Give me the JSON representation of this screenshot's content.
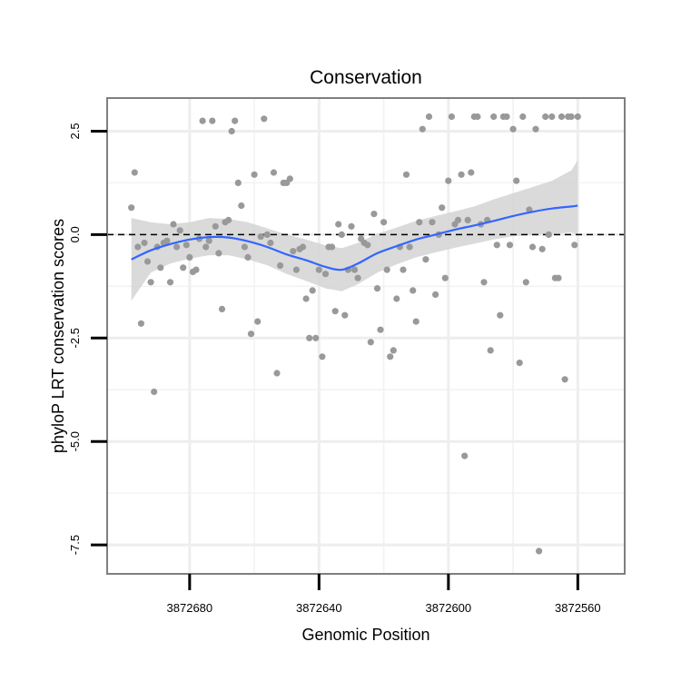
{
  "chart_data": {
    "type": "scatter",
    "title": "Conservation",
    "xlabel": "Genomic Position",
    "ylabel": "phyloP LRT conservation scores",
    "x_reversed": true,
    "xlim": [
      3872545.5,
      3872705.5
    ],
    "ylim": [
      -8.2,
      3.3
    ],
    "x_ticks": [
      3872680,
      3872640,
      3872600,
      3872560
    ],
    "x_tick_labels": [
      "3872680",
      "3872640",
      "3872600",
      "3872560"
    ],
    "y_ticks": [
      2.5,
      0.0,
      -2.5,
      -5.0,
      -7.5
    ],
    "y_tick_labels": [
      "2.5",
      "0.0",
      "-2.5",
      "-5.0",
      "-7.5"
    ],
    "grid": true,
    "reference_line": {
      "y": 0,
      "style": "dashed",
      "color": "#000000"
    },
    "colors": {
      "points": "#999999",
      "smooth": "#3366ff",
      "band": "#d3d3d3",
      "panel_border": "#7f7f7f"
    },
    "points": [
      {
        "x": 3872698,
        "y": 0.65
      },
      {
        "x": 3872697,
        "y": 1.5
      },
      {
        "x": 3872696,
        "y": -0.3
      },
      {
        "x": 3872695,
        "y": -2.15
      },
      {
        "x": 3872694,
        "y": -0.2
      },
      {
        "x": 3872693,
        "y": -0.65
      },
      {
        "x": 3872692,
        "y": -1.15
      },
      {
        "x": 3872691,
        "y": -3.8
      },
      {
        "x": 3872690,
        "y": -0.3
      },
      {
        "x": 3872689,
        "y": -0.8
      },
      {
        "x": 3872688,
        "y": -0.2
      },
      {
        "x": 3872687,
        "y": -0.15
      },
      {
        "x": 3872686,
        "y": -1.15
      },
      {
        "x": 3872685,
        "y": 0.25
      },
      {
        "x": 3872684,
        "y": -0.3
      },
      {
        "x": 3872683,
        "y": 0.1
      },
      {
        "x": 3872682,
        "y": -0.8
      },
      {
        "x": 3872681,
        "y": -0.25
      },
      {
        "x": 3872680,
        "y": -0.55
      },
      {
        "x": 3872679,
        "y": -0.9
      },
      {
        "x": 3872678,
        "y": -0.85
      },
      {
        "x": 3872677,
        "y": -0.1
      },
      {
        "x": 3872676,
        "y": 2.75
      },
      {
        "x": 3872675,
        "y": -0.3
      },
      {
        "x": 3872674,
        "y": -0.15
      },
      {
        "x": 3872673,
        "y": 2.75
      },
      {
        "x": 3872672,
        "y": 0.2
      },
      {
        "x": 3872671,
        "y": -0.45
      },
      {
        "x": 3872670,
        "y": -1.8
      },
      {
        "x": 3872669,
        "y": 0.3
      },
      {
        "x": 3872668,
        "y": 0.35
      },
      {
        "x": 3872667,
        "y": 2.5
      },
      {
        "x": 3872666,
        "y": 2.75
      },
      {
        "x": 3872665,
        "y": 1.25
      },
      {
        "x": 3872664,
        "y": 0.7
      },
      {
        "x": 3872663,
        "y": -0.3
      },
      {
        "x": 3872662,
        "y": -0.55
      },
      {
        "x": 3872661,
        "y": -2.4
      },
      {
        "x": 3872660,
        "y": 1.45
      },
      {
        "x": 3872659,
        "y": -2.1
      },
      {
        "x": 3872658,
        "y": -0.05
      },
      {
        "x": 3872657,
        "y": 2.8
      },
      {
        "x": 3872656,
        "y": 0.0
      },
      {
        "x": 3872655,
        "y": -0.2
      },
      {
        "x": 3872654,
        "y": 1.5
      },
      {
        "x": 3872653,
        "y": -3.35
      },
      {
        "x": 3872652,
        "y": -0.75
      },
      {
        "x": 3872651,
        "y": 1.25
      },
      {
        "x": 3872650,
        "y": 1.25
      },
      {
        "x": 3872649,
        "y": 1.35
      },
      {
        "x": 3872648,
        "y": -0.4
      },
      {
        "x": 3872647,
        "y": -0.85
      },
      {
        "x": 3872646,
        "y": -0.35
      },
      {
        "x": 3872645,
        "y": -0.3
      },
      {
        "x": 3872644,
        "y": -1.55
      },
      {
        "x": 3872643,
        "y": -2.5
      },
      {
        "x": 3872642,
        "y": -1.35
      },
      {
        "x": 3872641,
        "y": -2.5
      },
      {
        "x": 3872640,
        "y": -0.85
      },
      {
        "x": 3872639,
        "y": -2.95
      },
      {
        "x": 3872638,
        "y": -0.95
      },
      {
        "x": 3872637,
        "y": -0.3
      },
      {
        "x": 3872636,
        "y": -0.3
      },
      {
        "x": 3872635,
        "y": -1.85
      },
      {
        "x": 3872634,
        "y": 0.25
      },
      {
        "x": 3872633,
        "y": 0.0
      },
      {
        "x": 3872632,
        "y": -1.95
      },
      {
        "x": 3872631,
        "y": -0.85
      },
      {
        "x": 3872630,
        "y": 0.2
      },
      {
        "x": 3872629,
        "y": -0.85
      },
      {
        "x": 3872628,
        "y": -1.05
      },
      {
        "x": 3872627,
        "y": -0.1
      },
      {
        "x": 3872626,
        "y": -0.2
      },
      {
        "x": 3872625,
        "y": -0.25
      },
      {
        "x": 3872624,
        "y": -2.6
      },
      {
        "x": 3872623,
        "y": 0.5
      },
      {
        "x": 3872622,
        "y": -1.3
      },
      {
        "x": 3872621,
        "y": -2.3
      },
      {
        "x": 3872620,
        "y": 0.3
      },
      {
        "x": 3872619,
        "y": -0.85
      },
      {
        "x": 3872618,
        "y": -2.95
      },
      {
        "x": 3872617,
        "y": -2.8
      },
      {
        "x": 3872616,
        "y": -1.55
      },
      {
        "x": 3872615,
        "y": -0.3
      },
      {
        "x": 3872614,
        "y": -0.85
      },
      {
        "x": 3872613,
        "y": 1.45
      },
      {
        "x": 3872612,
        "y": -0.3
      },
      {
        "x": 3872611,
        "y": -1.35
      },
      {
        "x": 3872610,
        "y": -2.1
      },
      {
        "x": 3872609,
        "y": 0.3
      },
      {
        "x": 3872608,
        "y": 2.55
      },
      {
        "x": 3872607,
        "y": -0.6
      },
      {
        "x": 3872606,
        "y": 2.85
      },
      {
        "x": 3872605,
        "y": 0.3
      },
      {
        "x": 3872604,
        "y": -1.45
      },
      {
        "x": 3872603,
        "y": 0.0
      },
      {
        "x": 3872602,
        "y": 0.65
      },
      {
        "x": 3872601,
        "y": -1.05
      },
      {
        "x": 3872600,
        "y": 1.3
      },
      {
        "x": 3872599,
        "y": 2.85
      },
      {
        "x": 3872598,
        "y": 0.25
      },
      {
        "x": 3872597,
        "y": 0.35
      },
      {
        "x": 3872596,
        "y": 1.45
      },
      {
        "x": 3872595,
        "y": -5.35
      },
      {
        "x": 3872594,
        "y": 0.35
      },
      {
        "x": 3872593,
        "y": 1.5
      },
      {
        "x": 3872592,
        "y": 2.85
      },
      {
        "x": 3872591,
        "y": 2.85
      },
      {
        "x": 3872590,
        "y": 0.25
      },
      {
        "x": 3872589,
        "y": -1.15
      },
      {
        "x": 3872588,
        "y": 0.35
      },
      {
        "x": 3872587,
        "y": -2.8
      },
      {
        "x": 3872586,
        "y": 2.85
      },
      {
        "x": 3872585,
        "y": -0.25
      },
      {
        "x": 3872584,
        "y": -1.95
      },
      {
        "x": 3872583,
        "y": 2.85
      },
      {
        "x": 3872582,
        "y": 2.85
      },
      {
        "x": 3872581,
        "y": -0.25
      },
      {
        "x": 3872580,
        "y": 2.55
      },
      {
        "x": 3872579,
        "y": 1.3
      },
      {
        "x": 3872578,
        "y": -3.1
      },
      {
        "x": 3872577,
        "y": 2.85
      },
      {
        "x": 3872576,
        "y": -1.15
      },
      {
        "x": 3872575,
        "y": 0.6
      },
      {
        "x": 3872574,
        "y": -0.3
      },
      {
        "x": 3872573,
        "y": 2.55
      },
      {
        "x": 3872572,
        "y": -7.65
      },
      {
        "x": 3872571,
        "y": -0.35
      },
      {
        "x": 3872570,
        "y": 2.85
      },
      {
        "x": 3872569,
        "y": 0.0
      },
      {
        "x": 3872568,
        "y": 2.85
      },
      {
        "x": 3872567,
        "y": -1.05
      },
      {
        "x": 3872566,
        "y": -1.05
      },
      {
        "x": 3872565,
        "y": 2.85
      },
      {
        "x": 3872564,
        "y": -3.5
      },
      {
        "x": 3872563,
        "y": 2.85
      },
      {
        "x": 3872562,
        "y": 2.85
      },
      {
        "x": 3872561,
        "y": -0.25
      },
      {
        "x": 3872560,
        "y": 2.85
      }
    ],
    "smooth": {
      "x": [
        3872698,
        3872692,
        3872686,
        3872680,
        3872674,
        3872668,
        3872662,
        3872656,
        3872650,
        3872644,
        3872638,
        3872633,
        3872628,
        3872622,
        3872616,
        3872610,
        3872604,
        3872598,
        3872592,
        3872586,
        3872580,
        3872574,
        3872568,
        3872562,
        3872560
      ],
      "y": [
        -0.6,
        -0.38,
        -0.23,
        -0.12,
        -0.06,
        -0.07,
        -0.16,
        -0.3,
        -0.48,
        -0.62,
        -0.78,
        -0.85,
        -0.7,
        -0.45,
        -0.28,
        -0.12,
        0.0,
        0.12,
        0.22,
        0.33,
        0.45,
        0.55,
        0.63,
        0.68,
        0.7
      ],
      "lower": [
        -1.6,
        -0.92,
        -0.7,
        -0.58,
        -0.5,
        -0.5,
        -0.6,
        -0.74,
        -0.95,
        -1.12,
        -1.3,
        -1.37,
        -1.2,
        -0.92,
        -0.72,
        -0.55,
        -0.43,
        -0.32,
        -0.22,
        -0.12,
        -0.04,
        0.0,
        0.02,
        0.05,
        0.0
      ],
      "upper": [
        0.4,
        0.3,
        0.25,
        0.3,
        0.4,
        0.38,
        0.3,
        0.15,
        0.0,
        -0.12,
        -0.26,
        -0.33,
        -0.2,
        0.02,
        0.17,
        0.33,
        0.45,
        0.56,
        0.68,
        0.85,
        1.0,
        1.15,
        1.3,
        1.55,
        1.8
      ]
    }
  }
}
